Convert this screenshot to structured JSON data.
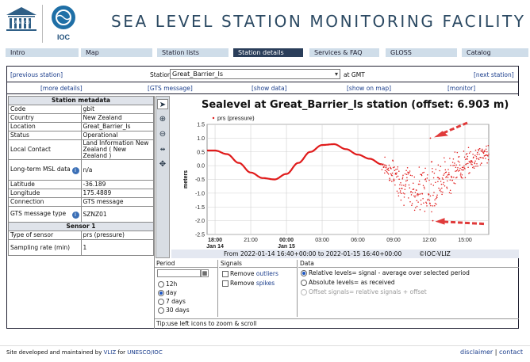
{
  "header": {
    "title": "SEA LEVEL STATION MONITORING FACILITY",
    "unesco_logo_text": "UNESCO",
    "ioc_logo_text": "IOC"
  },
  "nav": [
    {
      "label": "Intro",
      "active": false
    },
    {
      "label": "Map",
      "active": false
    },
    {
      "label": "Station lists",
      "active": false
    },
    {
      "label": "Station details",
      "active": true
    },
    {
      "label": "Services & FAQ",
      "active": false
    },
    {
      "label": "GLOSS",
      "active": false
    },
    {
      "label": "Catalog",
      "active": false
    }
  ],
  "station_bar": {
    "prev": "[previous station]",
    "station_label": "Station",
    "station_value": "Great_Barrier_Is",
    "at_gmt": "at GMT",
    "next": "[next station]"
  },
  "links": {
    "more_details": "[more details]",
    "gts_message": "[GTS message]",
    "show_data": "[show data]",
    "show_on_map": "[show on map]",
    "monitor": "[monitor]"
  },
  "metadata": {
    "title": "Station metadata",
    "rows": [
      {
        "key": "Code",
        "value": "gbit"
      },
      {
        "key": "Country",
        "value": "New Zealand"
      },
      {
        "key": "Location",
        "value": "Great_Barrier_Is"
      },
      {
        "key": "Status",
        "value": "Operational"
      },
      {
        "key": "Local Contact",
        "value": "Land Information New Zealand ( New Zealand )"
      },
      {
        "key": "Long-term MSL data",
        "value": "n/a"
      },
      {
        "key": "Latitude",
        "value": "-36.189"
      },
      {
        "key": "Longitude",
        "value": "175.4889"
      },
      {
        "key": "Connection",
        "value": "GTS message"
      },
      {
        "key": "GTS message type",
        "value": "SZNZ01"
      }
    ],
    "sensor_title": "Sensor 1",
    "sensor_rows": [
      {
        "key": "Type of sensor",
        "value": "prs (pressure)"
      },
      {
        "key": "Sampling rate (min)",
        "value": "1"
      }
    ]
  },
  "tools": [
    "select-arrow-icon",
    "zoom-in-icon",
    "zoom-out-icon",
    "fit-icon",
    "pan-icon"
  ],
  "chart_data": {
    "type": "scatter",
    "title": "Sealevel at Great_Barrier_Is station (offset: 6.903 m)",
    "legend": "prs (pressure)",
    "legend_position": "top-left",
    "ylabel": "meters",
    "ylim": [
      -2.5,
      1.5
    ],
    "yticks": [
      "1.5",
      "1.0",
      "0.5",
      "0.0",
      "-0.5",
      "-1.0",
      "-1.5",
      "-2.0",
      "-2.5"
    ],
    "x_range_hours": [
      -0.67,
      23.0
    ],
    "xticks": [
      {
        "h": 0,
        "label": "18:00",
        "sub": "Jan 14",
        "bold": true
      },
      {
        "h": 3,
        "label": "21:00",
        "sub": "",
        "bold": false
      },
      {
        "h": 6,
        "label": "00:00",
        "sub": "Jan 15",
        "bold": true
      },
      {
        "h": 9,
        "label": "03:00",
        "sub": "",
        "bold": false
      },
      {
        "h": 12,
        "label": "06:00",
        "sub": "",
        "bold": false
      },
      {
        "h": 15,
        "label": "09:00",
        "sub": "",
        "bold": false
      },
      {
        "h": 18,
        "label": "12:00",
        "sub": "",
        "bold": false
      },
      {
        "h": 21,
        "label": "15:00",
        "sub": "",
        "bold": false
      }
    ],
    "color": "#e01b1b",
    "grid": true,
    "series": [
      {
        "smooth_segment": {
          "x_hours": [
            -0.67,
            0.0,
            1.0,
            2.0,
            3.0,
            4.0,
            5.0,
            6.0,
            7.0,
            8.0,
            9.0,
            10.0,
            11.0,
            12.0,
            13.0,
            14.0
          ],
          "y_m": [
            0.55,
            0.55,
            0.42,
            0.1,
            -0.25,
            -0.45,
            -0.5,
            -0.3,
            0.1,
            0.5,
            0.75,
            0.78,
            0.6,
            0.4,
            0.25,
            0.05
          ]
        },
        "noisy_segment": {
          "x_hours": [
            14.0,
            15.0,
            16.0,
            17.0,
            18.0,
            19.0,
            20.0,
            21.0,
            22.0,
            23.0
          ],
          "center_m": [
            0.05,
            -0.3,
            -0.7,
            -0.9,
            -0.8,
            -0.5,
            -0.2,
            0.05,
            0.3,
            0.45
          ],
          "spread_m": [
            0.3,
            0.6,
            0.9,
            1.0,
            1.1,
            1.0,
            0.8,
            0.6,
            0.5,
            0.4
          ],
          "max_m": 1.0,
          "min_m": -2.0
        }
      }
    ],
    "annotations": [
      "arrow pointing to maximum outlier",
      "arrow pointing to minimum outlier"
    ]
  },
  "chart_footer": {
    "range_text": "From 2022-01-14 16:40+00:00 to 2022-01-15 16:40+00:00",
    "brand": "©IOC-VLIZ"
  },
  "period": {
    "title": "Period",
    "options": [
      {
        "label": "12h",
        "checked": false
      },
      {
        "label": "day",
        "checked": true
      },
      {
        "label": "7 days",
        "checked": false
      },
      {
        "label": "30 days",
        "checked": false
      }
    ]
  },
  "signals": {
    "title": "Signals",
    "remove_outliers_prefix": "Remove",
    "remove_outliers_link": "outliers",
    "remove_spikes_prefix": "Remove",
    "remove_spikes_link": "spikes"
  },
  "data_opts": {
    "title": "Data",
    "options": [
      {
        "label": "Relative levels= signal - average over selected period",
        "checked": true,
        "enabled": true
      },
      {
        "label": "Absolute levels= as received",
        "checked": false,
        "enabled": true
      },
      {
        "label": "Offset signals= relative signals + offset",
        "checked": false,
        "enabled": false
      }
    ]
  },
  "tip": "Tip:use left icons to zoom & scroll",
  "footer": {
    "prefix": "Site developed and maintained by",
    "vliz": "VLIZ",
    "for": "for",
    "unesco_ioc": "UNESCO/IOC",
    "disclaimer": "disclaimer",
    "sep": "|",
    "contact": "contact"
  }
}
